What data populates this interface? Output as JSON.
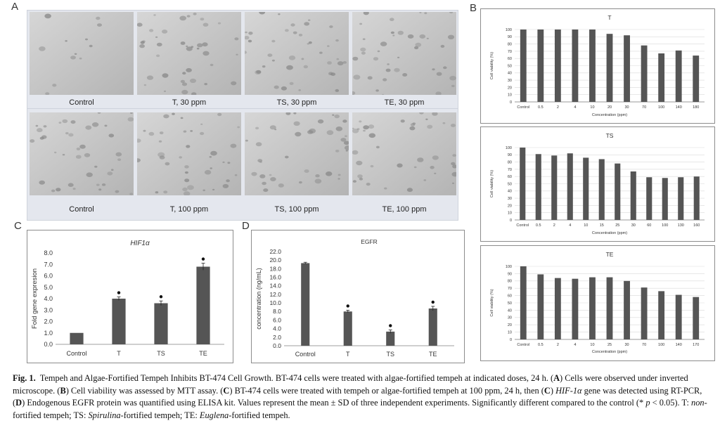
{
  "panel_letters": {
    "a": "A",
    "b": "B",
    "c": "C",
    "d": "D"
  },
  "micrographs": {
    "row1": [
      "Control",
      "T, 30 ppm",
      "TS, 30 ppm",
      "TE, 30 ppm"
    ],
    "row2": [
      "Control",
      "T, 100 ppm",
      "TS, 100 ppm",
      "TE, 100 ppm"
    ]
  },
  "colors": {
    "bar": "#555555",
    "grid": "#d9d9d9",
    "axis": "#7f7f7f",
    "micro_bg": "#c9c9c9"
  },
  "chart_data": [
    {
      "id": "B-T",
      "type": "bar",
      "title": "T",
      "xlabel": "Concentration (ppm)",
      "ylabel": "Cell viability (%)",
      "categories": [
        "Control",
        "0.5",
        "2",
        "4",
        "10",
        "20",
        "30",
        "70",
        "100",
        "140",
        "180"
      ],
      "values": [
        100,
        100,
        100,
        100,
        100,
        94,
        92,
        78,
        67,
        71,
        64
      ],
      "ylim": [
        0,
        100
      ],
      "yticks": [
        0,
        10,
        20,
        30,
        40,
        50,
        60,
        70,
        80,
        90,
        100
      ],
      "grid": true
    },
    {
      "id": "B-TS",
      "type": "bar",
      "title": "TS",
      "xlabel": "Concentration (ppm)",
      "ylabel": "Cell viability (%)",
      "categories": [
        "Control",
        "0.5",
        "2",
        "4",
        "10",
        "15",
        "25",
        "30",
        "60",
        "100",
        "130",
        "160"
      ],
      "values": [
        100,
        91,
        89,
        92,
        86,
        84,
        78,
        67,
        59,
        58,
        59,
        60
      ],
      "ylim": [
        0,
        100
      ],
      "yticks": [
        0,
        10,
        20,
        30,
        40,
        50,
        60,
        70,
        80,
        90,
        100
      ],
      "grid": true
    },
    {
      "id": "B-TE",
      "type": "bar",
      "title": "TE",
      "xlabel": "Concentration (ppm)",
      "ylabel": "Cell viability (%)",
      "categories": [
        "Control",
        "0.5",
        "2",
        "4",
        "10",
        "25",
        "30",
        "70",
        "100",
        "140",
        "170"
      ],
      "values": [
        100,
        89,
        84,
        83,
        85,
        85,
        80,
        71,
        66,
        61,
        58
      ],
      "ylim": [
        0,
        100
      ],
      "yticks": [
        0,
        10,
        20,
        30,
        40,
        50,
        60,
        70,
        80,
        90,
        100
      ],
      "grid": true
    },
    {
      "id": "C",
      "type": "bar",
      "title": "HIF1α",
      "xlabel": "",
      "ylabel": "Fold gene expresion",
      "categories": [
        "Control",
        "T",
        "TS",
        "TE"
      ],
      "values": [
        1.0,
        4.0,
        3.6,
        6.8
      ],
      "errors": [
        0,
        0.15,
        0.2,
        0.3
      ],
      "significant": [
        false,
        true,
        true,
        true
      ],
      "ylim": [
        0,
        8.0
      ],
      "yticks": [
        0.0,
        1.0,
        2.0,
        3.0,
        4.0,
        5.0,
        6.0,
        7.0,
        8.0
      ],
      "grid": false
    },
    {
      "id": "D",
      "type": "bar",
      "title": "EGFR",
      "xlabel": "",
      "ylabel": "concentration (ng/mL)",
      "categories": [
        "Control",
        "T",
        "TS",
        "TE"
      ],
      "values": [
        19.3,
        8.0,
        3.3,
        8.7
      ],
      "errors": [
        0.2,
        0.3,
        0.4,
        0.5
      ],
      "significant": [
        false,
        true,
        true,
        true
      ],
      "ylim": [
        0,
        22.0
      ],
      "yticks": [
        0.0,
        2.0,
        4.0,
        6.0,
        8.0,
        10.0,
        12.0,
        14.0,
        16.0,
        18.0,
        20.0,
        22.0
      ],
      "grid": false
    }
  ],
  "caption": {
    "fig": "Fig. 1.",
    "title": "Tempeh and Algae-Fortified Tempeh Inhibits BT-474 Cell Growth.",
    "s1": "BT-474 cells were treated with algae-fortified tempeh at indicated doses, 24 h. (",
    "A": "A",
    "s2": ") Cells were observed under inverted microscope. (",
    "B": "B",
    "s3": ") Cell viability was assessed by MTT assay. (",
    "C": "C",
    "s4": ") BT-474 cells were treated with tempeh or algae-fortified tempeh at 100 ppm, 24 h, then (",
    "C2": "C",
    "s5": ") ",
    "hif": "HIF-1α",
    "s6": " gene was detected using RT-PCR, (",
    "D": "D",
    "s7": ") Endogenous EGFR protein was quantified using ELISA kit. Values represent the mean ± SD of three independent experiments. Significantly different compared to the control (* ",
    "p": "p",
    "s8": " < 0.05). T: ",
    "non": "non",
    "s9": "-fortified tempeh; TS: ",
    "spir": "Spirulina",
    "s10": "-fortified tempeh; TE: ",
    "eug": "Euglena",
    "s11": "-fortified tempeh."
  }
}
